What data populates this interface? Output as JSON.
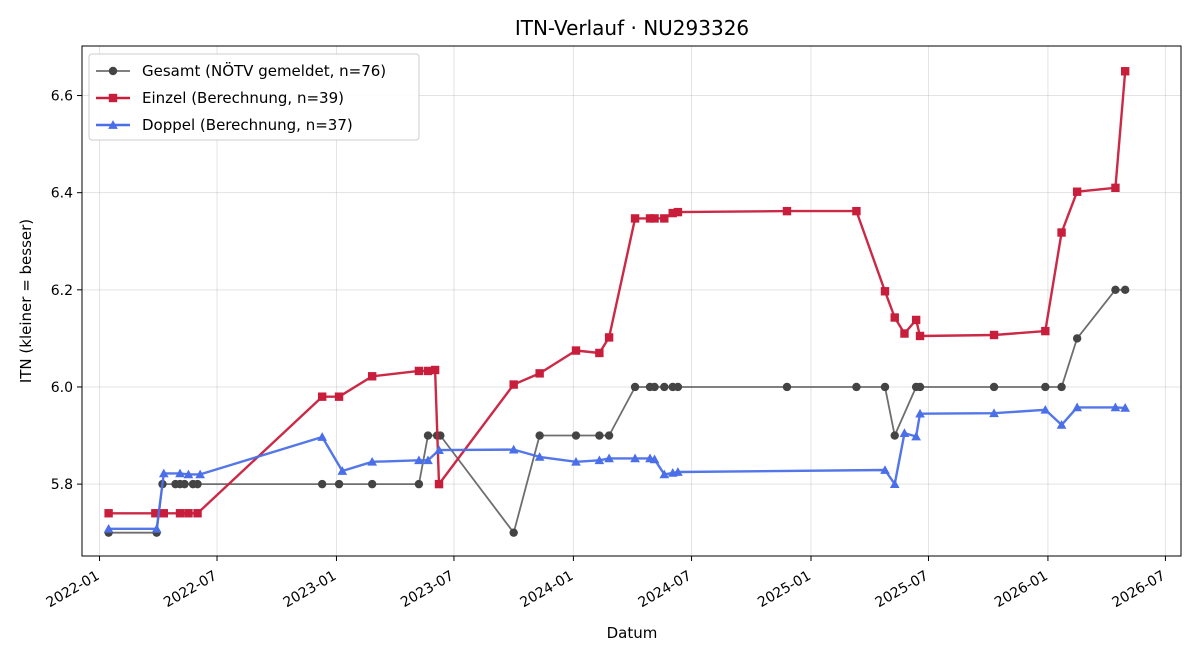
{
  "chart_data": {
    "type": "line",
    "title": "ITN-Verlauf · NU293326",
    "xlabel": "Datum",
    "ylabel": "ITN  (kleiner = besser)",
    "x_type": "date",
    "xlim": [
      "2021-12-05",
      "2026-07-25"
    ],
    "ylim": [
      5.652,
      6.702
    ],
    "x_ticks": [
      "2022-01-01",
      "2022-07-01",
      "2023-01-01",
      "2023-07-01",
      "2024-01-01",
      "2024-07-01",
      "2025-01-01",
      "2025-07-01",
      "2026-01-01",
      "2026-07-01"
    ],
    "x_tick_labels": [
      "2022-01",
      "2022-07",
      "2023-01",
      "2023-07",
      "2024-01",
      "2024-07",
      "2025-01",
      "2025-07",
      "2026-01",
      "2026-07"
    ],
    "y_ticks": [
      5.8,
      6.0,
      6.2,
      6.4,
      6.6
    ],
    "y_tick_labels": [
      "5.8",
      "6.0",
      "6.2",
      "6.4",
      "6.6"
    ],
    "grid": true,
    "legend_position": "top-left",
    "series": [
      {
        "name": "Gesamt (NÖTV gemeldet, n=76)",
        "color": "#6e6e6e",
        "marker_color": "#444444",
        "marker": "circle",
        "points": [
          [
            "2022-01-15",
            5.7
          ],
          [
            "2022-03-30",
            5.7
          ],
          [
            "2022-04-08",
            5.8
          ],
          [
            "2022-04-28",
            5.8
          ],
          [
            "2022-05-05",
            5.8
          ],
          [
            "2022-05-12",
            5.8
          ],
          [
            "2022-05-25",
            5.8
          ],
          [
            "2022-06-01",
            5.8
          ],
          [
            "2022-12-10",
            5.8
          ],
          [
            "2023-01-05",
            5.8
          ],
          [
            "2023-02-25",
            5.8
          ],
          [
            "2023-05-08",
            5.8
          ],
          [
            "2023-05-22",
            5.9
          ],
          [
            "2023-06-05",
            5.9
          ],
          [
            "2023-06-10",
            5.9
          ],
          [
            "2023-10-01",
            5.7
          ],
          [
            "2023-11-10",
            5.9
          ],
          [
            "2024-01-05",
            5.9
          ],
          [
            "2024-02-10",
            5.9
          ],
          [
            "2024-02-25",
            5.9
          ],
          [
            "2024-04-05",
            6.0
          ],
          [
            "2024-04-28",
            6.0
          ],
          [
            "2024-05-05",
            6.0
          ],
          [
            "2024-05-20",
            6.0
          ],
          [
            "2024-06-02",
            6.0
          ],
          [
            "2024-06-10",
            6.0
          ],
          [
            "2024-11-25",
            6.0
          ],
          [
            "2025-03-12",
            6.0
          ],
          [
            "2025-04-25",
            6.0
          ],
          [
            "2025-05-10",
            5.9
          ],
          [
            "2025-06-12",
            6.0
          ],
          [
            "2025-06-18",
            6.0
          ],
          [
            "2025-10-10",
            6.0
          ],
          [
            "2025-12-28",
            6.0
          ],
          [
            "2026-01-22",
            6.0
          ],
          [
            "2026-02-15",
            6.1
          ],
          [
            "2026-04-15",
            6.2
          ],
          [
            "2026-04-30",
            6.2
          ]
        ]
      },
      {
        "name": "Einzel (Berechnung, n=39)",
        "color": "#c81e3c",
        "marker": "square",
        "points": [
          [
            "2022-01-15",
            5.74
          ],
          [
            "2022-03-28",
            5.74
          ],
          [
            "2022-04-10",
            5.74
          ],
          [
            "2022-05-05",
            5.74
          ],
          [
            "2022-05-18",
            5.74
          ],
          [
            "2022-06-01",
            5.74
          ],
          [
            "2022-12-10",
            5.98
          ],
          [
            "2023-01-05",
            5.98
          ],
          [
            "2023-02-25",
            6.022
          ],
          [
            "2023-05-08",
            6.033
          ],
          [
            "2023-05-22",
            6.033
          ],
          [
            "2023-06-02",
            6.035
          ],
          [
            "2023-06-08",
            5.8
          ],
          [
            "2023-10-01",
            6.005
          ],
          [
            "2023-11-10",
            6.028
          ],
          [
            "2024-01-05",
            6.075
          ],
          [
            "2024-02-10",
            6.07
          ],
          [
            "2024-02-25",
            6.102
          ],
          [
            "2024-04-05",
            6.347
          ],
          [
            "2024-04-28",
            6.347
          ],
          [
            "2024-05-05",
            6.347
          ],
          [
            "2024-05-20",
            6.347
          ],
          [
            "2024-06-02",
            6.358
          ],
          [
            "2024-06-10",
            6.36
          ],
          [
            "2024-11-25",
            6.362
          ],
          [
            "2025-03-12",
            6.362
          ],
          [
            "2025-04-25",
            6.197
          ],
          [
            "2025-05-10",
            6.143
          ],
          [
            "2025-05-25",
            6.11
          ],
          [
            "2025-06-12",
            6.138
          ],
          [
            "2025-06-18",
            6.105
          ],
          [
            "2025-10-10",
            6.107
          ],
          [
            "2025-12-28",
            6.115
          ],
          [
            "2026-01-22",
            6.318
          ],
          [
            "2026-02-15",
            6.402
          ],
          [
            "2026-04-15",
            6.41
          ],
          [
            "2026-04-30",
            6.65
          ]
        ]
      },
      {
        "name": "Doppel (Berechnung, n=37)",
        "color": "#4a6fe8",
        "marker": "triangle",
        "points": [
          [
            "2022-01-15",
            5.708
          ],
          [
            "2022-03-30",
            5.708
          ],
          [
            "2022-04-10",
            5.822
          ],
          [
            "2022-05-05",
            5.822
          ],
          [
            "2022-05-18",
            5.82
          ],
          [
            "2022-06-05",
            5.82
          ],
          [
            "2022-12-10",
            5.897
          ],
          [
            "2023-01-10",
            5.827
          ],
          [
            "2023-02-25",
            5.846
          ],
          [
            "2023-05-08",
            5.849
          ],
          [
            "2023-05-22",
            5.849
          ],
          [
            "2023-06-08",
            5.87
          ],
          [
            "2023-10-01",
            5.871
          ],
          [
            "2023-11-10",
            5.856
          ],
          [
            "2024-01-05",
            5.846
          ],
          [
            "2024-02-10",
            5.849
          ],
          [
            "2024-02-25",
            5.853
          ],
          [
            "2024-04-05",
            5.853
          ],
          [
            "2024-04-28",
            5.853
          ],
          [
            "2024-05-05",
            5.851
          ],
          [
            "2024-05-20",
            5.82
          ],
          [
            "2024-06-02",
            5.823
          ],
          [
            "2024-06-10",
            5.825
          ],
          [
            "2025-04-25",
            5.829
          ],
          [
            "2025-05-10",
            5.8
          ],
          [
            "2025-05-25",
            5.905
          ],
          [
            "2025-06-12",
            5.898
          ],
          [
            "2025-06-18",
            5.945
          ],
          [
            "2025-10-10",
            5.946
          ],
          [
            "2025-12-28",
            5.953
          ],
          [
            "2026-01-22",
            5.922
          ],
          [
            "2026-02-15",
            5.958
          ],
          [
            "2026-04-15",
            5.958
          ],
          [
            "2026-04-30",
            5.957
          ]
        ]
      }
    ]
  }
}
